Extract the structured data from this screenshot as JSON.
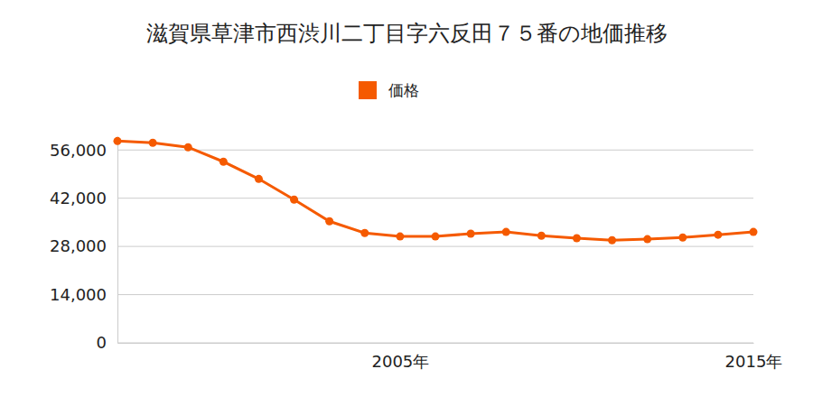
{
  "chart_data": {
    "type": "line",
    "title": "滋賀県草津市西渋川二丁目字六反田７５番の地価推移",
    "categories": [
      null,
      null,
      null,
      null,
      null,
      null,
      null,
      null,
      "2005年",
      null,
      null,
      null,
      null,
      null,
      null,
      null,
      null,
      null,
      "2015年"
    ],
    "series": [
      {
        "name": "価格",
        "color": "#f55a00",
        "values": [
          58600,
          58100,
          56800,
          52600,
          47600,
          41600,
          35300,
          31900,
          30900,
          30900,
          31700,
          32200,
          31100,
          30400,
          29800,
          30100,
          30600,
          31400,
          32200
        ]
      }
    ],
    "ylim": [
      0,
      60000
    ],
    "yticks": [
      0,
      {
        "value": 14000,
        "label": "14,000"
      },
      {
        "value": 28000,
        "label": "28,000"
      },
      {
        "value": 42000,
        "label": "42,000"
      },
      {
        "value": 56000,
        "label": "56,000"
      }
    ],
    "grid": true,
    "legend": "top",
    "marker": "circle",
    "line_style": "solid"
  }
}
